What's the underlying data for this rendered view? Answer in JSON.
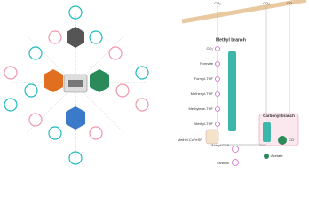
{
  "right": {
    "inputs": [
      "CO₂",
      "CO₂",
      "CO"
    ],
    "methyl_branch": {
      "title": "Methyl branch",
      "steps": [
        "CO₂",
        "Formate",
        "Formyl-THF",
        "Methenyl-THF",
        "Methylene-THF",
        "Methyl-THF",
        "Methyl-CoFeSP"
      ]
    },
    "carbonyl_branch": {
      "title": "Carbonyl branch",
      "steps": [
        "CO"
      ]
    },
    "products": [
      "Acetyl-CoA",
      "Acetate",
      "Ethanol"
    ]
  }
}
